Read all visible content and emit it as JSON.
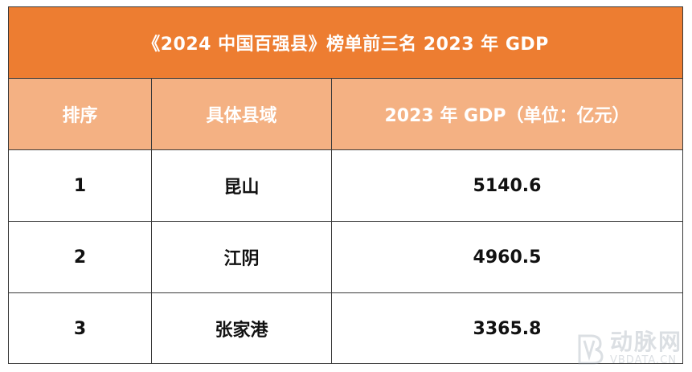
{
  "title": "《2024 中国百强县》榜单前三名 2023 年 GDP",
  "headers": {
    "rank": "排序",
    "county": "具体县域",
    "gdp": "2023 年 GDP（单位：亿元）"
  },
  "rows": [
    {
      "rank": "1",
      "county": "昆山",
      "gdp": "5140.6"
    },
    {
      "rank": "2",
      "county": "江阴",
      "gdp": "4960.5"
    },
    {
      "rank": "3",
      "county": "张家港",
      "gdp": "3365.8"
    }
  ],
  "watermark": {
    "cn": "动脉网",
    "en": "VBDATA.CN",
    "icon": "vb-logo-icon"
  },
  "colors": {
    "title_bg": "#ED7D31",
    "header_bg": "#F4B183",
    "border": "#3a3a3a"
  }
}
